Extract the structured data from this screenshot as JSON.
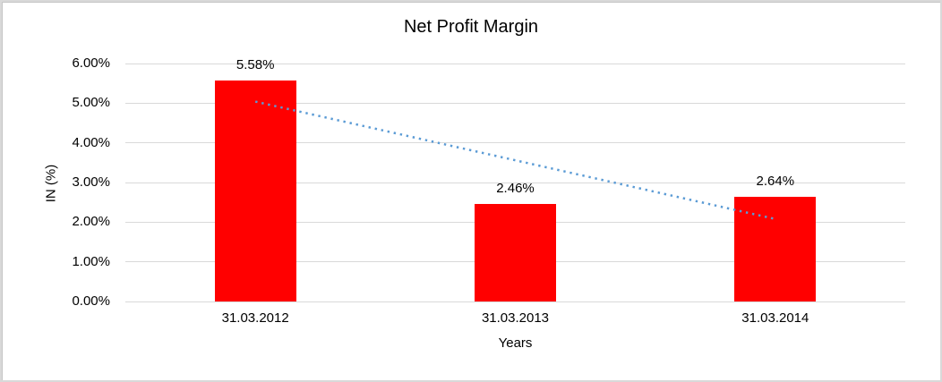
{
  "chart_data": {
    "type": "bar",
    "title": "Net Profit Margin",
    "categories": [
      "31.03.2012",
      "31.03.2013",
      "31.03.2014"
    ],
    "values": [
      5.58,
      2.46,
      2.64
    ],
    "data_labels": [
      "5.58%",
      "2.46%",
      "2.64%"
    ],
    "xlabel": "Years",
    "ylabel": "IN (%)",
    "ylim": [
      0,
      6
    ],
    "ytick_step": 1,
    "ytick_labels": [
      "0.00%",
      "1.00%",
      "2.00%",
      "3.00%",
      "4.00%",
      "5.00%",
      "6.00%"
    ],
    "grid": true,
    "legend": "none",
    "bar_color": "#ff0000",
    "gridline_color": "#d9d9d9",
    "text_color": "#000000",
    "trendline": {
      "type": "linear",
      "style": "dotted",
      "color": "#5b9bd5",
      "start_value": 5.04,
      "end_value": 2.08
    }
  }
}
